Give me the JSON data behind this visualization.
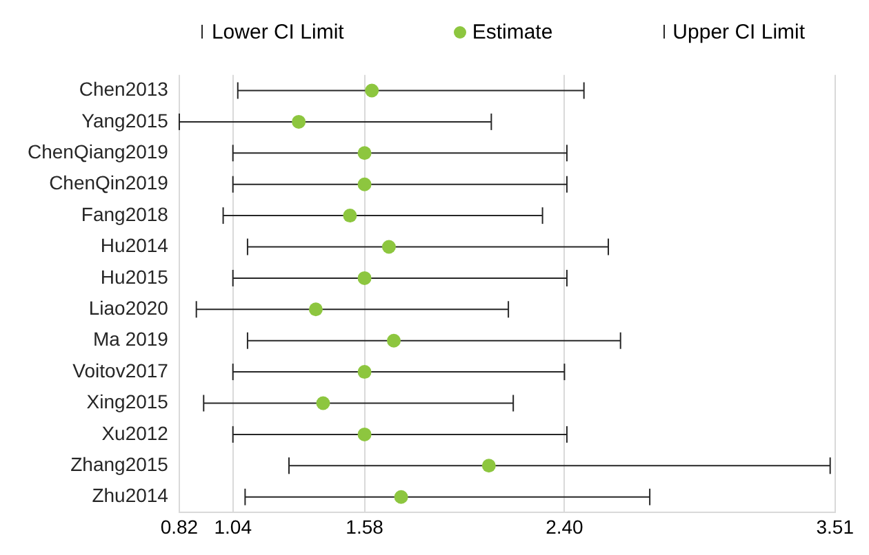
{
  "chart_data": {
    "type": "scatter",
    "orientation": "horizontal",
    "categories": [
      "Chen2013",
      "Yang2015",
      "ChenQiang2019",
      "ChenQin2019",
      "Fang2018",
      "Hu2014",
      "Hu2015",
      "Liao2020",
      "Ma 2019",
      "Voitov2017",
      "Xing2015",
      "Xu2012",
      "Zhang2015",
      "Zhu2014"
    ],
    "series": [
      {
        "name": "Estimate",
        "color": "#8dc63f",
        "values": [
          1.61,
          1.31,
          1.58,
          1.58,
          1.52,
          1.68,
          1.58,
          1.38,
          1.7,
          1.58,
          1.41,
          1.58,
          2.09,
          1.73
        ],
        "errors": [
          [
            1.06,
            2.48
          ],
          [
            0.82,
            2.1
          ],
          [
            1.04,
            2.41
          ],
          [
            1.04,
            2.41
          ],
          [
            1.0,
            2.31
          ],
          [
            1.1,
            2.58
          ],
          [
            1.04,
            2.41
          ],
          [
            0.89,
            2.17
          ],
          [
            1.1,
            2.63
          ],
          [
            1.04,
            2.4
          ],
          [
            0.92,
            2.19
          ],
          [
            1.04,
            2.41
          ],
          [
            1.27,
            3.49
          ],
          [
            1.09,
            2.75
          ]
        ]
      }
    ],
    "annotations": [
      "Lower CI Limit",
      "Upper CI Limit"
    ],
    "marker": "circle",
    "xlim": [
      0.82,
      3.51
    ],
    "xticks": [
      0.82,
      1.04,
      1.58,
      {
        "value": 2.4,
        "label": "2.40"
      },
      3.51
    ],
    "grid": "x",
    "legend": "top"
  }
}
